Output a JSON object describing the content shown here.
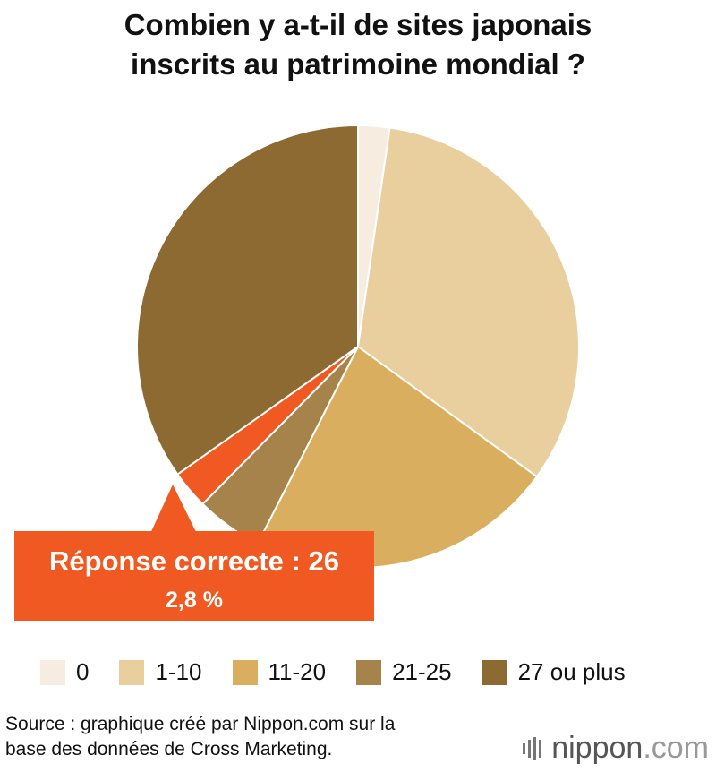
{
  "title_line1": "Combien y a-t-il de sites japonais",
  "title_line2": "inscrits au patrimoine mondial ?",
  "chart_data": {
    "type": "pie",
    "title": "Combien y a-t-il de sites japonais inscrits au patrimoine mondial ?",
    "categories": [
      "0",
      "1-10",
      "11-20",
      "21-25",
      "26",
      "27 ou plus"
    ],
    "values": [
      2.3,
      32.7,
      22.5,
      4.9,
      2.8,
      34.8
    ],
    "colors": [
      "#f6ede0",
      "#e8cf9d",
      "#d9af5f",
      "#a6834a",
      "#f05a22",
      "#8c6a31"
    ],
    "legend": [
      "0",
      "1-10",
      "11-20",
      "21-25",
      "27 ou plus"
    ],
    "legend_placement": "bottom"
  },
  "callout": {
    "main": "Réponse correcte : 26",
    "pct": "2,8 %"
  },
  "legend": [
    {
      "label": "0",
      "color": "#f6ede0"
    },
    {
      "label": "1-10",
      "color": "#e8cf9d"
    },
    {
      "label": "11-20",
      "color": "#d9af5f"
    },
    {
      "label": "21-25",
      "color": "#a6834a"
    },
    {
      "label": "27 ou plus",
      "color": "#8c6a31"
    }
  ],
  "source_line1": "Source : graphique créé par Nippon.com sur la",
  "source_line2": "base des données de Cross Marketing.",
  "logo_text": "nippon",
  "logo_suffix": ".com"
}
